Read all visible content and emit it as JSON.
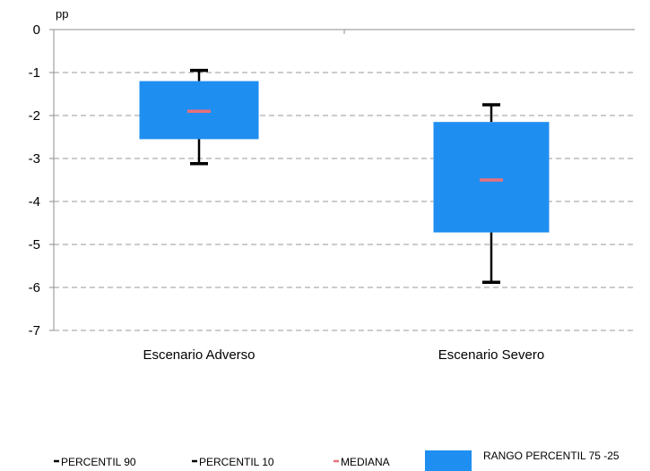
{
  "chart_data": {
    "type": "box",
    "unit_label": "pp",
    "ylim": [
      -7,
      0
    ],
    "y_ticks": [
      "0",
      "-1",
      "-2",
      "-3",
      "-4",
      "-5",
      "-6",
      "-7"
    ],
    "y_tick_values": [
      0,
      -1,
      -2,
      -3,
      -4,
      -5,
      -6,
      -7
    ],
    "grid": "horizontal dashed",
    "categories": [
      "Escenario Adverso",
      "Escenario Severo"
    ],
    "boxes": [
      {
        "category": "Escenario Adverso",
        "p90": -0.95,
        "p75": -1.2,
        "median": -1.9,
        "p25": -2.55,
        "p10": -3.12
      },
      {
        "category": "Escenario Severo",
        "p90": -1.75,
        "p75": -2.15,
        "median": -3.5,
        "p25": -4.72,
        "p10": -5.88
      }
    ],
    "legend": {
      "placement": "bottom",
      "items": [
        {
          "key": "p90",
          "label": "PERCENTIL 90",
          "color": "#000000"
        },
        {
          "key": "p10",
          "label": "PERCENTIL 10",
          "color": "#000000"
        },
        {
          "key": "median",
          "label": "MEDIANA",
          "color": "#e8707a"
        },
        {
          "key": "range",
          "label": "RANGO PERCENTIL 75 -25",
          "color": "#1f8ef1"
        }
      ]
    },
    "colors": {
      "box": "#1f8ef1",
      "median": "#e8707a",
      "whisker": "#000000",
      "grid": "#9a9a9a",
      "axis": "#8c8c8c"
    }
  }
}
